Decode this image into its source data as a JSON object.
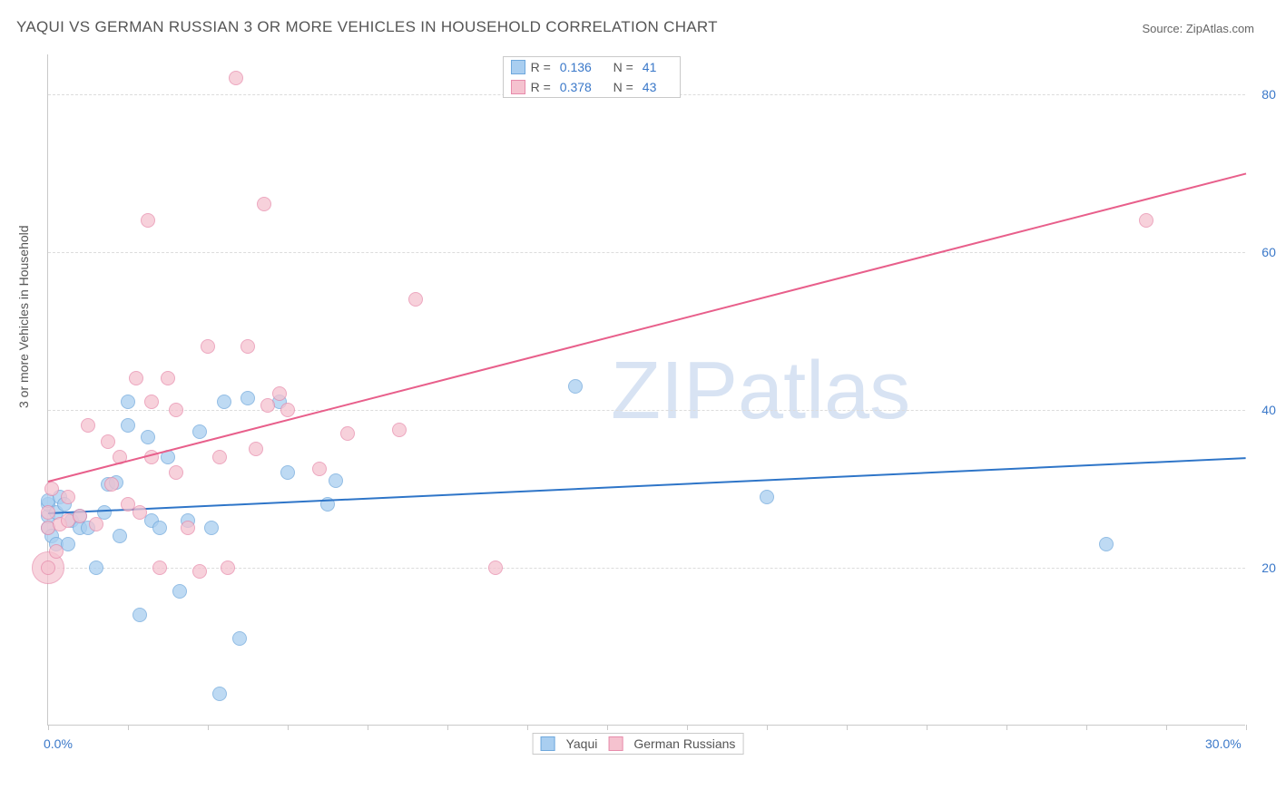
{
  "title": "YAQUI VS GERMAN RUSSIAN 3 OR MORE VEHICLES IN HOUSEHOLD CORRELATION CHART",
  "source_label": "Source: ZipAtlas.com",
  "watermark": "ZIPatlas",
  "ylabel": "3 or more Vehicles in Household",
  "chart": {
    "type": "scatter-with-regression",
    "xlim": [
      0,
      30
    ],
    "ylim": [
      0,
      85
    ],
    "x_ticks_minor_step": 2,
    "x_labels": [
      {
        "v": 0,
        "t": "0.0%"
      },
      {
        "v": 30,
        "t": "30.0%"
      }
    ],
    "y_gridlines": [
      20,
      40,
      60,
      80
    ],
    "y_labels": [
      {
        "v": 20,
        "t": "20.0%"
      },
      {
        "v": 40,
        "t": "40.0%"
      },
      {
        "v": 60,
        "t": "60.0%"
      },
      {
        "v": 80,
        "t": "80.0%"
      }
    ],
    "background_color": "#ffffff",
    "grid_color": "#dcdcdc",
    "axis_color": "#c9c9c9",
    "series": [
      {
        "name": "Yaqui",
        "fill": "#a9cef0",
        "stroke": "#6fa8dc",
        "trend_color": "#2e75c8",
        "marker_r": 8,
        "R": "0.136",
        "N": "41",
        "trend": {
          "x1": 0,
          "y1": 27,
          "x2": 30,
          "y2": 34
        },
        "points": [
          [
            0.0,
            25
          ],
          [
            0.0,
            26.5
          ],
          [
            0.0,
            28
          ],
          [
            0.0,
            28.5
          ],
          [
            0.1,
            24
          ],
          [
            0.2,
            27
          ],
          [
            0.2,
            23
          ],
          [
            0.3,
            29
          ],
          [
            0.4,
            28
          ],
          [
            0.5,
            23
          ],
          [
            0.6,
            26
          ],
          [
            0.8,
            26.5
          ],
          [
            0.8,
            25
          ],
          [
            1.0,
            25
          ],
          [
            1.2,
            20
          ],
          [
            1.4,
            27
          ],
          [
            1.5,
            30.5
          ],
          [
            1.7,
            30.8
          ],
          [
            1.8,
            24
          ],
          [
            2.0,
            38
          ],
          [
            2.0,
            41
          ],
          [
            2.3,
            14
          ],
          [
            2.5,
            36.5
          ],
          [
            2.6,
            26
          ],
          [
            2.8,
            25
          ],
          [
            3.0,
            34
          ],
          [
            3.3,
            17
          ],
          [
            3.5,
            26
          ],
          [
            3.8,
            37.2
          ],
          [
            4.1,
            25
          ],
          [
            4.3,
            4
          ],
          [
            4.4,
            41
          ],
          [
            4.8,
            11
          ],
          [
            5.0,
            41.5
          ],
          [
            5.8,
            41
          ],
          [
            6.0,
            32
          ],
          [
            7.0,
            28
          ],
          [
            7.2,
            31
          ],
          [
            13.2,
            43
          ],
          [
            18.0,
            29
          ],
          [
            26.5,
            23
          ]
        ]
      },
      {
        "name": "German Russians",
        "fill": "#f5c2cf",
        "stroke": "#e78bab",
        "trend_color": "#e85f8b",
        "marker_r": 8,
        "R": "0.378",
        "N": "43",
        "trend": {
          "x1": 0,
          "y1": 31,
          "x2": 30,
          "y2": 70
        },
        "points": [
          [
            0.0,
            20
          ],
          [
            0.0,
            25
          ],
          [
            0.0,
            27
          ],
          [
            0.1,
            30
          ],
          [
            0.2,
            22
          ],
          [
            0.3,
            25.5
          ],
          [
            0.5,
            26
          ],
          [
            0.5,
            29
          ],
          [
            0.8,
            26.5
          ],
          [
            1.0,
            38
          ],
          [
            1.2,
            25.5
          ],
          [
            1.5,
            36
          ],
          [
            1.6,
            30.5
          ],
          [
            1.8,
            34
          ],
          [
            2.0,
            28
          ],
          [
            2.2,
            44
          ],
          [
            2.3,
            27
          ],
          [
            2.5,
            64
          ],
          [
            2.6,
            41
          ],
          [
            2.6,
            34
          ],
          [
            2.8,
            20
          ],
          [
            3.0,
            44
          ],
          [
            3.2,
            40
          ],
          [
            3.2,
            32
          ],
          [
            3.5,
            25
          ],
          [
            3.8,
            19.5
          ],
          [
            4.0,
            48
          ],
          [
            4.3,
            34
          ],
          [
            4.5,
            20
          ],
          [
            4.7,
            82
          ],
          [
            5.0,
            48
          ],
          [
            5.2,
            35
          ],
          [
            5.4,
            66
          ],
          [
            5.5,
            40.5
          ],
          [
            5.8,
            42
          ],
          [
            6.0,
            40
          ],
          [
            6.8,
            32.5
          ],
          [
            7.5,
            37
          ],
          [
            8.8,
            37.5
          ],
          [
            9.2,
            54
          ],
          [
            11.2,
            20
          ],
          [
            27.5,
            64
          ]
        ],
        "extra_points": [
          {
            "x": 0.0,
            "y": 20,
            "r": 18
          }
        ]
      }
    ]
  },
  "legend_top": {
    "rows": [
      {
        "series": 0,
        "stats": [
          [
            "R =",
            "0.136"
          ],
          [
            "N =",
            "41"
          ]
        ]
      },
      {
        "series": 1,
        "stats": [
          [
            "R =",
            "0.378"
          ],
          [
            "N =",
            "43"
          ]
        ]
      }
    ]
  },
  "legend_bottom": [
    "Yaqui",
    "German Russians"
  ]
}
